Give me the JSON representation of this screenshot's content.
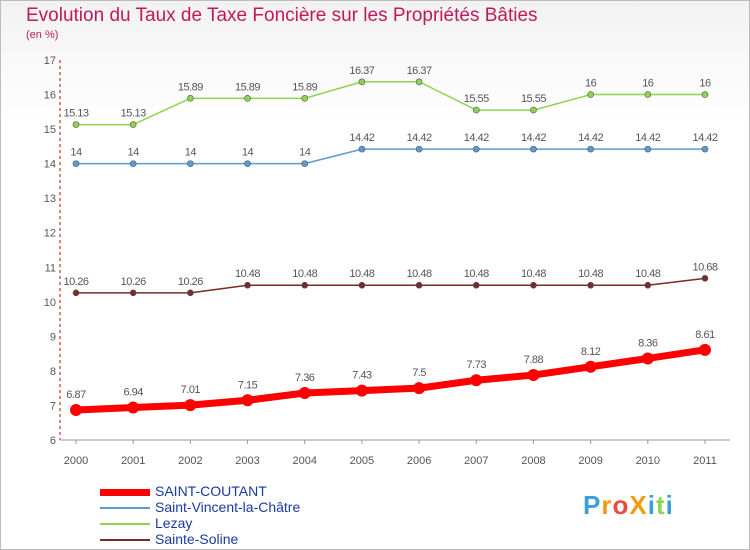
{
  "chart_data": {
    "type": "line",
    "title": "Evolution du Taux de Taxe Foncière sur les Propriétés Bâties",
    "ylabel": "(en %)",
    "xlabel": "",
    "ylim": [
      6,
      17
    ],
    "yticks": [
      6,
      7,
      8,
      9,
      10,
      11,
      12,
      13,
      14,
      15,
      16,
      17
    ],
    "categories": [
      "2000",
      "2001",
      "2002",
      "2003",
      "2004",
      "2005",
      "2006",
      "2007",
      "2008",
      "2009",
      "2010",
      "2011"
    ],
    "series": [
      {
        "name": "SAINT-COUTANT",
        "color": "#ff0000",
        "values": [
          6.87,
          6.94,
          7.01,
          7.15,
          7.36,
          7.43,
          7.5,
          7.73,
          7.88,
          8.12,
          8.36,
          8.61
        ],
        "labels": [
          "6.87",
          "6.94",
          "7.01",
          "7.15",
          "7.36",
          "7.43",
          "7.5",
          "7.73",
          "7.88",
          "8.12",
          "8.36",
          "8.61"
        ]
      },
      {
        "name": "Saint-Vincent-la-Châtre",
        "color": "#5b9bd5",
        "values": [
          14,
          14,
          14,
          14,
          14,
          14.42,
          14.42,
          14.42,
          14.42,
          14.42,
          14.42,
          14.42
        ],
        "labels": [
          "14",
          "14",
          "14",
          "14",
          "14",
          "14.42",
          "14.42",
          "14.42",
          "14.42",
          "14.42",
          "14.42",
          "14.42"
        ]
      },
      {
        "name": "Lezay",
        "color": "#8ed44e",
        "values": [
          15.13,
          15.13,
          15.89,
          15.89,
          15.89,
          16.37,
          16.37,
          15.55,
          15.55,
          16,
          16,
          16
        ],
        "labels": [
          "15.13",
          "15.13",
          "15.89",
          "15.89",
          "15.89",
          "16.37",
          "16.37",
          "15.55",
          "15.55",
          "16",
          "16",
          "16"
        ]
      },
      {
        "name": "Sainte-Soline",
        "color": "#7b2a2a",
        "values": [
          10.26,
          10.26,
          10.26,
          10.48,
          10.48,
          10.48,
          10.48,
          10.48,
          10.48,
          10.48,
          10.48,
          10.68
        ],
        "labels": [
          "10.26",
          "10.26",
          "10.26",
          "10.48",
          "10.48",
          "10.48",
          "10.48",
          "10.48",
          "10.48",
          "10.48",
          "10.48",
          "10.68"
        ]
      }
    ],
    "legend": "bottom-left"
  },
  "logo": {
    "text": "ProXiti",
    "letters": [
      "P",
      "r",
      "o",
      "X",
      "i",
      "t",
      "i"
    ],
    "colors": [
      "#3aa0d8",
      "#f39c12",
      "#e74c3c",
      "#f39c12",
      "#3aa0d8",
      "#8ed44e",
      "#3aa0d8"
    ]
  }
}
